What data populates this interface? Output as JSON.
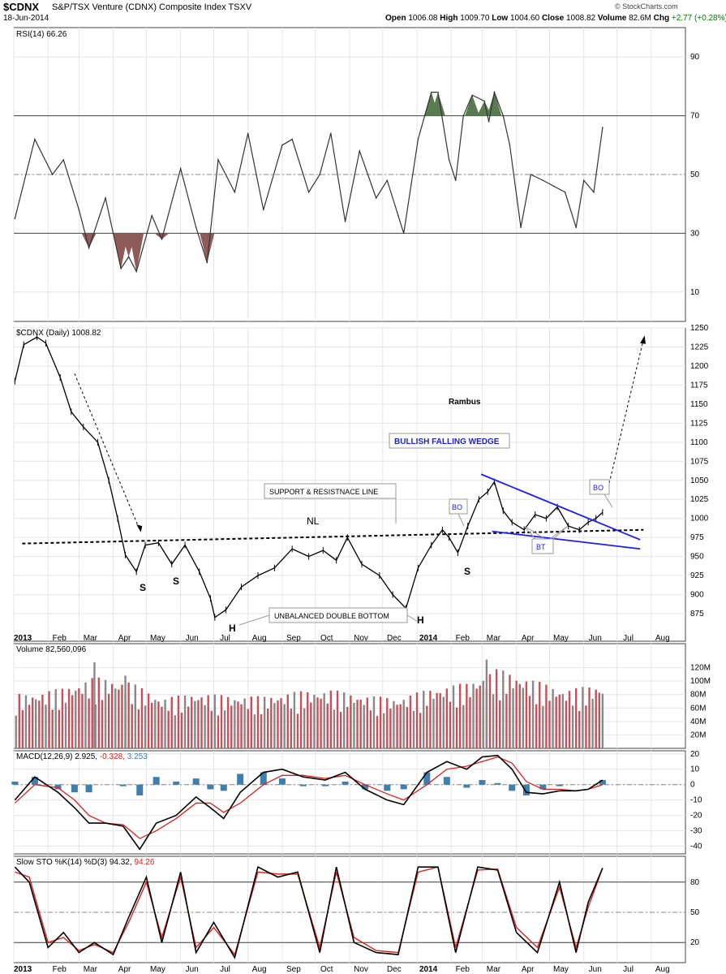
{
  "header": {
    "symbol": "$CDNX",
    "description": "S&P/TSX Venture (CDNX) Composite Index TSXV",
    "date": "18-Jun-2014",
    "open_label": "Open",
    "open": "1006.08",
    "high_label": "High",
    "high": "1009.70",
    "low_label": "Low",
    "low": "1004.60",
    "close_label": "Close",
    "close": "1008.82",
    "volume_label": "Volume",
    "volume": "82.6M",
    "chg_label": "Chg",
    "chg": "+2.77 (+0.28%)",
    "credit": "© StockCharts.com"
  },
  "colors": {
    "price": "#000000",
    "rsi_up_fill": "#5a7a52",
    "rsi_down_fill": "#8f5a5a",
    "vol_up": "#888888",
    "vol_down": "#c8505a",
    "macd_hist": "#3d7fae",
    "signal": "#e02020",
    "wedge": "#1a1aff",
    "grid": "#e4e4e4"
  },
  "chart_data": [
    {
      "type": "line",
      "name": "RSI(14)",
      "label": "RSI(14) 66.26",
      "ylim": [
        0,
        100
      ],
      "yticks": [
        "90",
        "70",
        "50",
        "30",
        "10"
      ],
      "levels": [
        30,
        50,
        70
      ],
      "x": [
        "2013-01-02",
        "2013-01-20",
        "2013-02-05",
        "2013-02-15",
        "2013-03-01",
        "2013-03-10",
        "2013-03-25",
        "2013-04-08",
        "2013-04-15",
        "2013-04-22",
        "2013-05-06",
        "2013-05-15",
        "2013-06-01",
        "2013-06-15",
        "2013-06-25",
        "2013-07-05",
        "2013-07-20",
        "2013-08-01",
        "2013-08-15",
        "2013-09-01",
        "2013-09-10",
        "2013-09-25",
        "2013-10-05",
        "2013-10-15",
        "2013-10-28",
        "2013-11-10",
        "2013-11-25",
        "2013-12-05",
        "2013-12-15",
        "2013-12-20",
        "2014-01-02",
        "2014-01-14",
        "2014-01-20",
        "2014-01-30",
        "2014-02-05",
        "2014-02-12",
        "2014-02-20",
        "2014-03-03",
        "2014-03-07",
        "2014-03-12",
        "2014-03-20",
        "2014-03-26",
        "2014-04-05",
        "2014-04-14",
        "2014-04-25",
        "2014-05-05",
        "2014-05-15",
        "2014-05-25",
        "2014-06-01",
        "2014-06-10",
        "2014-06-18"
      ],
      "values": [
        35,
        62,
        50,
        55,
        38,
        25,
        42,
        18,
        22,
        17,
        36,
        28,
        52,
        32,
        20,
        55,
        44,
        64,
        38,
        60,
        62,
        44,
        50,
        64,
        34,
        58,
        42,
        48,
        36,
        30,
        62,
        78,
        78,
        55,
        48,
        70,
        77,
        75,
        68,
        78,
        70,
        60,
        32,
        50,
        48,
        46,
        44,
        32,
        48,
        44,
        66
      ],
      "fill_above": 70,
      "fill_below": 30
    },
    {
      "type": "line",
      "name": "$CDNX (Daily)",
      "label": "$CDNX (Daily) 1008.82",
      "ylim": [
        858,
        1250
      ],
      "yticks": [
        "1250",
        "1225",
        "1200",
        "1175",
        "1150",
        "1125",
        "1100",
        "1075",
        "1050",
        "1025",
        "1000",
        "975",
        "950",
        "925",
        "900",
        "875"
      ],
      "x_ticks": [
        "2013",
        "Feb",
        "Mar",
        "Apr",
        "May",
        "Jun",
        "Jul",
        "Aug",
        "Sep",
        "Oct",
        "Nov",
        "Dec",
        "2014",
        "Feb",
        "Mar",
        "Apr",
        "May",
        "Jun",
        "Jul",
        "Aug"
      ],
      "x": [
        "2013-01-02",
        "2013-01-10",
        "2013-01-22",
        "2013-01-30",
        "2013-02-12",
        "2013-02-22",
        "2013-03-05",
        "2013-03-18",
        "2013-03-28",
        "2013-04-05",
        "2013-04-12",
        "2013-04-22",
        "2013-04-30",
        "2013-05-12",
        "2013-05-24",
        "2013-06-05",
        "2013-06-18",
        "2013-06-28",
        "2013-07-02",
        "2013-07-12",
        "2013-07-26",
        "2013-08-10",
        "2013-08-25",
        "2013-09-10",
        "2013-09-25",
        "2013-10-08",
        "2013-10-20",
        "2013-10-30",
        "2013-11-12",
        "2013-11-28",
        "2013-12-10",
        "2013-12-22",
        "2014-01-02",
        "2014-01-14",
        "2014-01-24",
        "2014-01-30",
        "2014-02-07",
        "2014-02-16",
        "2014-02-26",
        "2014-03-06",
        "2014-03-12",
        "2014-03-20",
        "2014-03-28",
        "2014-04-08",
        "2014-04-18",
        "2014-04-28",
        "2014-05-08",
        "2014-05-18",
        "2014-05-28",
        "2014-06-05",
        "2014-06-12",
        "2014-06-18"
      ],
      "values": [
        1180,
        1228,
        1238,
        1230,
        1185,
        1140,
        1120,
        1100,
        1050,
        1000,
        952,
        930,
        965,
        968,
        940,
        965,
        930,
        895,
        870,
        880,
        910,
        925,
        935,
        960,
        950,
        958,
        945,
        975,
        940,
        925,
        900,
        882,
        935,
        965,
        985,
        975,
        955,
        990,
        1025,
        1035,
        1048,
        1010,
        995,
        985,
        1005,
        1000,
        1015,
        990,
        985,
        995,
        1000,
        1008
      ]
    },
    {
      "type": "bar",
      "name": "Volume",
      "label": "Volume 82,560,096",
      "ylim": [
        0,
        140
      ],
      "unit": "M",
      "yticks": [
        "120M",
        "100M",
        "80M",
        "60M",
        "40M",
        "20M"
      ],
      "x": [
        "2013-01-15",
        "2013-02-15",
        "2013-03-15",
        "2013-04-15",
        "2013-05-15",
        "2013-06-15",
        "2013-07-15",
        "2013-08-15",
        "2013-09-15",
        "2013-10-15",
        "2013-11-15",
        "2013-12-15",
        "2014-01-15",
        "2014-02-15",
        "2014-03-15",
        "2014-04-15",
        "2014-05-15",
        "2014-06-15"
      ],
      "values": [
        65,
        72,
        85,
        80,
        60,
        66,
        63,
        62,
        68,
        70,
        63,
        60,
        72,
        78,
        95,
        82,
        70,
        76
      ],
      "peaks": [
        {
          "x": "2013-03-15",
          "value": 128
        },
        {
          "x": "2013-04-12",
          "value": 108
        },
        {
          "x": "2014-03-05",
          "value": 132
        }
      ]
    },
    {
      "type": "line",
      "name": "MACD(12,26,9)",
      "label": "MACD(12,26,9)",
      "label_values": [
        "2.925",
        "-0.328",
        "3.253"
      ],
      "ylim": [
        -45,
        22
      ],
      "yticks": [
        "20",
        "10",
        "0",
        "-10",
        "-20",
        "-30",
        "-40"
      ],
      "x": [
        "2013-01-02",
        "2013-01-20",
        "2013-02-10",
        "2013-02-25",
        "2013-03-10",
        "2013-03-25",
        "2013-04-10",
        "2013-04-25",
        "2013-05-10",
        "2013-05-28",
        "2013-06-15",
        "2013-06-28",
        "2013-07-10",
        "2013-07-25",
        "2013-08-15",
        "2013-09-01",
        "2013-09-20",
        "2013-10-10",
        "2013-10-28",
        "2013-11-15",
        "2013-12-05",
        "2013-12-20",
        "2014-01-10",
        "2014-01-28",
        "2014-02-15",
        "2014-03-01",
        "2014-03-15",
        "2014-03-28",
        "2014-04-10",
        "2014-04-25",
        "2014-05-10",
        "2014-05-25",
        "2014-06-05",
        "2014-06-18"
      ],
      "macd": [
        -10,
        5,
        -5,
        -15,
        -25,
        -25,
        -27,
        -42,
        -25,
        -20,
        -8,
        -15,
        -22,
        -5,
        8,
        10,
        5,
        3,
        8,
        -3,
        -10,
        -13,
        8,
        15,
        10,
        18,
        19,
        10,
        -5,
        -6,
        -4,
        -4,
        -3,
        3
      ],
      "signal": [
        -12,
        0,
        -2,
        -10,
        -20,
        -25,
        -26,
        -35,
        -30,
        -22,
        -12,
        -12,
        -18,
        -12,
        0,
        6,
        6,
        4,
        6,
        0,
        -6,
        -10,
        0,
        10,
        12,
        15,
        18,
        14,
        2,
        -3,
        -3,
        -4,
        -3,
        0
      ]
    },
    {
      "type": "line",
      "name": "Slow STO %K(14) %D(3)",
      "label": "Slow STO %K(14) %D(3)",
      "label_values": [
        "94.32",
        "94.26"
      ],
      "ylim": [
        0,
        100
      ],
      "yticks": [
        "80",
        "50",
        "20"
      ],
      "levels": [
        20,
        50,
        80
      ],
      "x_ticks": [
        "2013",
        "Feb",
        "Mar",
        "Apr",
        "May",
        "Jun",
        "Jul",
        "Aug",
        "Sep",
        "Oct",
        "Nov",
        "Dec",
        "2014",
        "Feb",
        "Mar",
        "Apr",
        "May",
        "Jun",
        "Jul",
        "Aug"
      ],
      "x": [
        "2013-01-02",
        "2013-01-15",
        "2013-02-01",
        "2013-02-15",
        "2013-03-01",
        "2013-03-15",
        "2013-04-01",
        "2013-04-15",
        "2013-05-01",
        "2013-05-15",
        "2013-06-01",
        "2013-06-15",
        "2013-07-01",
        "2013-07-20",
        "2013-08-10",
        "2013-08-28",
        "2013-09-15",
        "2013-10-05",
        "2013-10-20",
        "2013-11-05",
        "2013-11-25",
        "2013-12-15",
        "2014-01-02",
        "2014-01-20",
        "2014-02-05",
        "2014-02-25",
        "2014-03-15",
        "2014-04-01",
        "2014-04-20",
        "2014-05-10",
        "2014-05-25",
        "2014-06-05",
        "2014-06-18"
      ],
      "k": [
        95,
        80,
        15,
        30,
        10,
        20,
        8,
        45,
        85,
        20,
        90,
        10,
        40,
        5,
        95,
        85,
        90,
        10,
        95,
        20,
        10,
        8,
        95,
        95,
        10,
        95,
        92,
        30,
        10,
        80,
        10,
        60,
        94
      ],
      "d": [
        90,
        85,
        20,
        25,
        12,
        18,
        10,
        40,
        80,
        25,
        85,
        15,
        35,
        8,
        90,
        88,
        88,
        15,
        90,
        25,
        12,
        10,
        90,
        95,
        15,
        92,
        93,
        35,
        15,
        75,
        15,
        55,
        94
      ]
    }
  ],
  "annotations": {
    "author": "Rambus",
    "wedge": "BULLISH FALLING WEDGE",
    "support": "SUPPORT & RESISTNACE LINE",
    "neckline": "NL",
    "double_bottom": "UNBALANCED DOUBLE BOTTOM",
    "s1": "S",
    "s2": "S",
    "s3": "S",
    "h1": "H",
    "h2": "H",
    "bo1": "BO",
    "bo2": "BO",
    "bt": "BT"
  }
}
